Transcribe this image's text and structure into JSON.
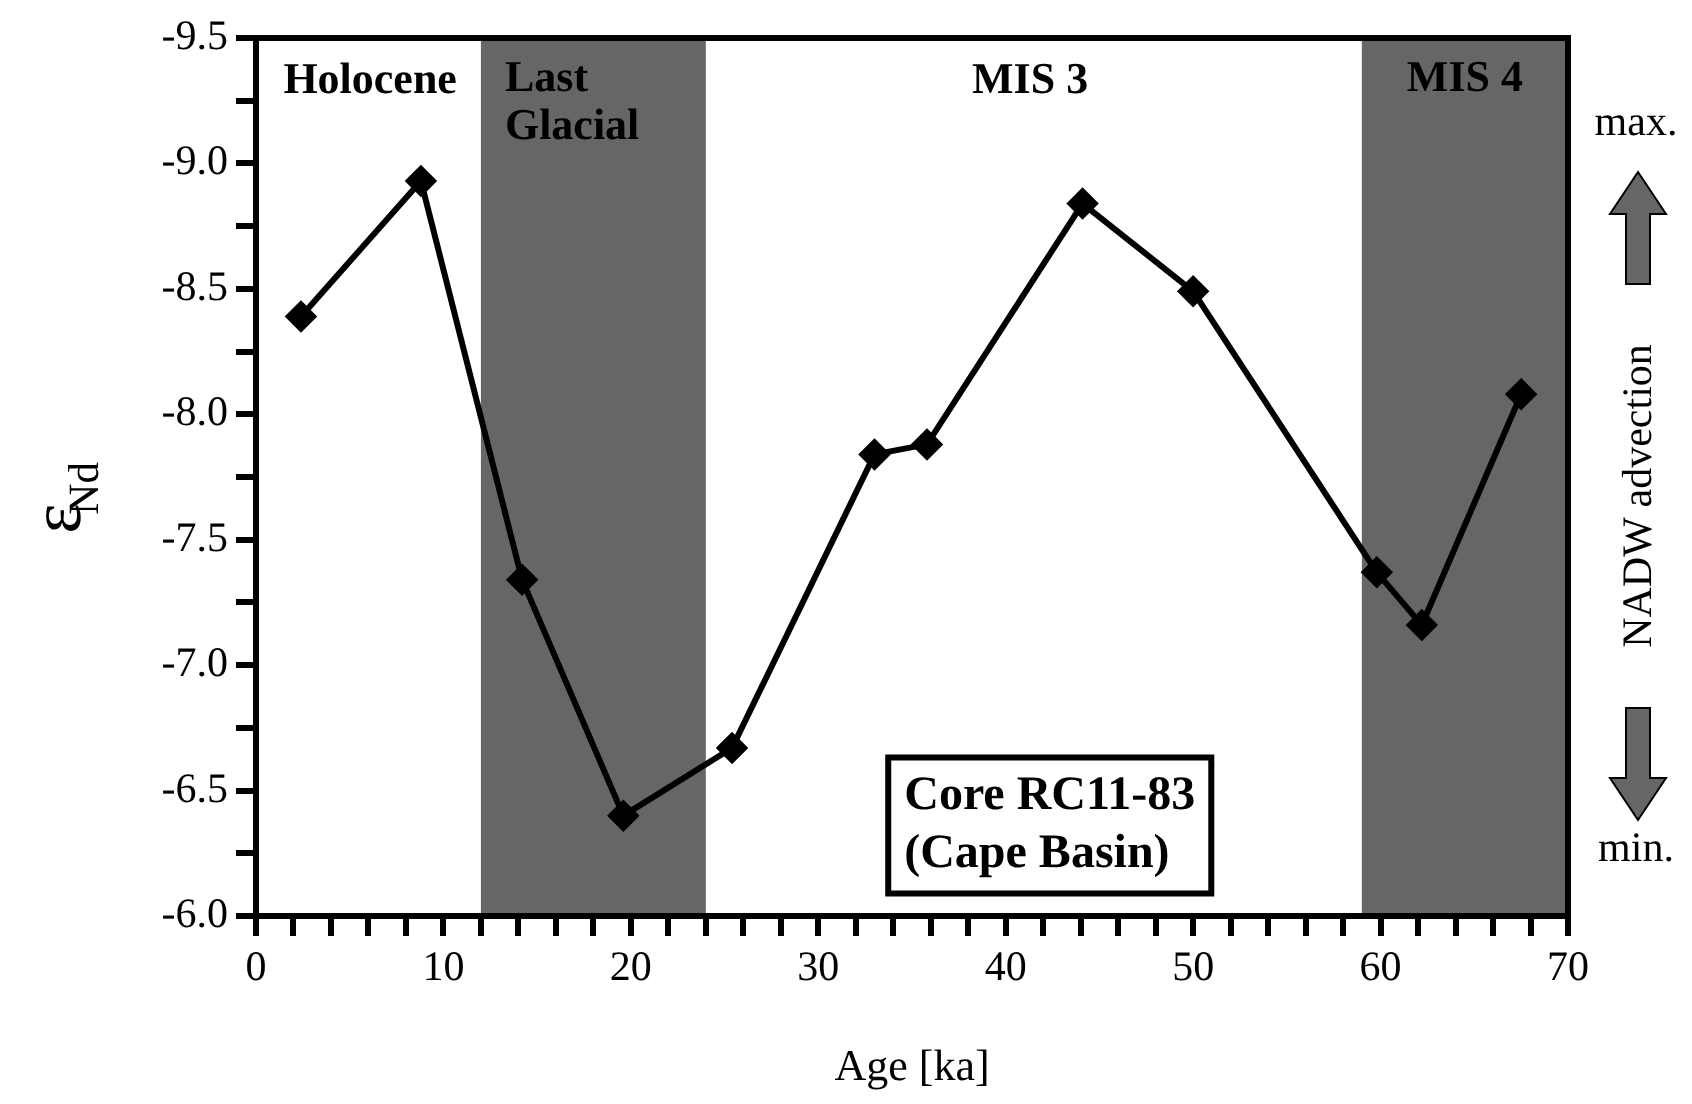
{
  "chart_data": {
    "type": "line",
    "xlabel": "Age [ka]",
    "ylabel": "ε$_{Nd}$",
    "x": [
      2.4,
      8.8,
      14.2,
      19.6,
      25.4,
      33.0,
      35.8,
      44.1,
      50.0,
      59.8,
      62.2,
      67.5
    ],
    "series": [
      {
        "color": "#000000",
        "values": [
          -8.39,
          -8.93,
          -7.34,
          -6.4,
          -6.67,
          -7.84,
          -7.88,
          -8.84,
          -8.49,
          -7.37,
          -7.16,
          -8.08
        ]
      }
    ],
    "marker": "diamond",
    "line_style": "solid",
    "grid": false,
    "legend": false,
    "xlim": [
      0,
      70
    ],
    "xticks": [
      0,
      {
        "value": 2,
        "label": null
      },
      {
        "value": 4,
        "label": null
      },
      {
        "value": 6,
        "label": null
      },
      {
        "value": 8,
        "label": null
      },
      10,
      {
        "value": 12,
        "label": null
      },
      {
        "value": 14,
        "label": null
      },
      {
        "value": 16,
        "label": null
      },
      {
        "value": 18,
        "label": null
      },
      20,
      {
        "value": 22,
        "label": null
      },
      {
        "value": 24,
        "label": null
      },
      {
        "value": 26,
        "label": null
      },
      {
        "value": 28,
        "label": null
      },
      30,
      {
        "value": 32,
        "label": null
      },
      {
        "value": 34,
        "label": null
      },
      {
        "value": 36,
        "label": null
      },
      {
        "value": 38,
        "label": null
      },
      40,
      {
        "value": 42,
        "label": null
      },
      {
        "value": 44,
        "label": null
      },
      {
        "value": 46,
        "label": null
      },
      {
        "value": 48,
        "label": null
      },
      50,
      {
        "value": 52,
        "label": null
      },
      {
        "value": 54,
        "label": null
      },
      {
        "value": 56,
        "label": null
      },
      {
        "value": 58,
        "label": null
      },
      60,
      {
        "value": 62,
        "label": null
      },
      {
        "value": 64,
        "label": null
      },
      {
        "value": 66,
        "label": null
      },
      {
        "value": 68,
        "label": null
      },
      70
    ],
    "ylim": [
      -6.0,
      -9.5
    ],
    "yticks": [
      -9.5,
      {
        "value": -9.25,
        "label": null
      },
      {
        "value": -9,
        "label": "-9.0"
      },
      {
        "value": -8.75,
        "label": null
      },
      -8.5,
      {
        "value": -8.25,
        "label": null
      },
      {
        "value": -8,
        "label": "-8.0"
      },
      {
        "value": -7.75,
        "label": null
      },
      -7.5,
      {
        "value": -7.25,
        "label": null
      },
      {
        "value": -7,
        "label": "-7.0"
      },
      {
        "value": -6.75,
        "label": null
      },
      -6.5,
      {
        "value": -6.25,
        "label": null
      },
      {
        "value": -6,
        "label": "-6.0"
      }
    ],
    "bands": [
      {
        "axis": "x",
        "from": 12,
        "to": 24,
        "label": "Last Glacial",
        "color": "#666666"
      },
      {
        "axis": "x",
        "from": 59,
        "to": 70,
        "label": "MIS 4",
        "color": "#666666"
      }
    ],
    "annotations": [
      "Holocene",
      "MIS 3",
      "Core RC11-83\n(Cape Basin)",
      "max.",
      "min.",
      "NADW advection"
    ]
  }
}
